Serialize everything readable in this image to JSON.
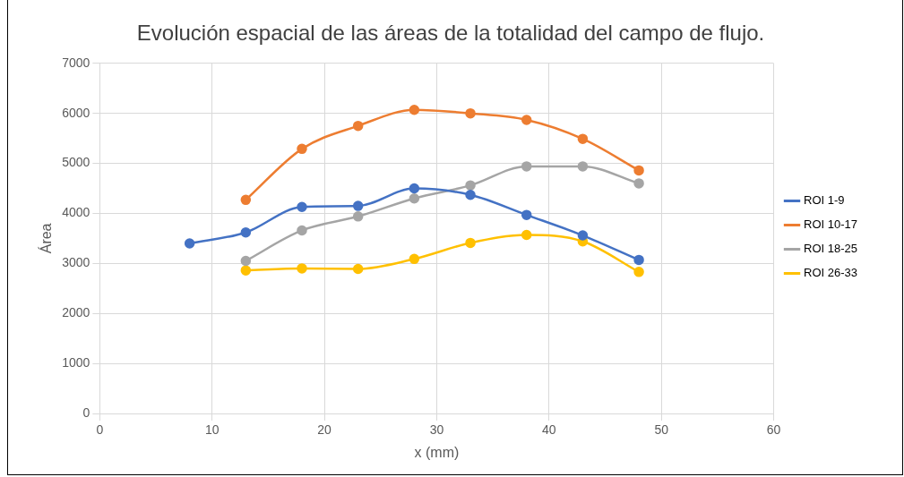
{
  "chart_data": {
    "type": "line",
    "title": "Evolución espacial de las áreas de la totalidad del campo de flujo.",
    "xlabel": "x (mm)",
    "ylabel": "Área",
    "series": [
      {
        "name": "ROI 1-9",
        "color": "#4472c4",
        "x": [
          8,
          13,
          18,
          23,
          28,
          33,
          38,
          43,
          48
        ],
        "values": [
          3400,
          3620,
          4130,
          4150,
          4500,
          4370,
          3970,
          3560,
          3070
        ]
      },
      {
        "name": "ROI 10-17",
        "color": "#ed7d31",
        "x": [
          13,
          18,
          23,
          28,
          33,
          38,
          43,
          48
        ],
        "values": [
          4270,
          5290,
          5750,
          6070,
          6000,
          5870,
          5490,
          4860
        ]
      },
      {
        "name": "ROI 18-25",
        "color": "#a5a5a5",
        "x": [
          13,
          18,
          23,
          28,
          33,
          38,
          43,
          48
        ],
        "values": [
          3050,
          3660,
          3940,
          4300,
          4560,
          4940,
          4940,
          4600
        ]
      },
      {
        "name": "ROI 26-33",
        "color": "#ffc000",
        "x": [
          13,
          18,
          23,
          28,
          33,
          38,
          43,
          48
        ],
        "values": [
          2860,
          2900,
          2890,
          3090,
          3410,
          3570,
          3440,
          2830
        ]
      }
    ],
    "xlim": [
      0,
      60
    ],
    "xticks": [
      0,
      10,
      20,
      30,
      40,
      50,
      60
    ],
    "ylim": [
      0,
      7000
    ],
    "yticks": [
      0,
      1000,
      2000,
      3000,
      4000,
      5000,
      6000,
      7000
    ],
    "grid": true,
    "legend": "right",
    "marker": "circle",
    "line_style": "solid"
  }
}
